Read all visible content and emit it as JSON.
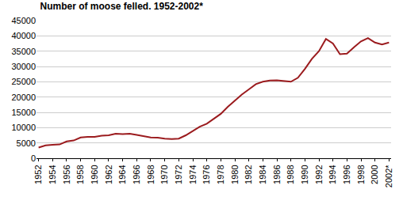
{
  "chart_data": {
    "type": "line",
    "title": "Number of moose felled. 1952-2002*",
    "categories": [
      "1952",
      null,
      "1954",
      null,
      "1956",
      null,
      "1958",
      null,
      "1960",
      null,
      "1962",
      null,
      "1964",
      null,
      "1966",
      null,
      "1968",
      null,
      "1970",
      null,
      "1972",
      null,
      "1974",
      null,
      "1976",
      null,
      "1978",
      null,
      "1980",
      null,
      "1982",
      null,
      "1984",
      null,
      "1986",
      null,
      "1988",
      null,
      "1990",
      null,
      "1992",
      null,
      "1994",
      null,
      "1996",
      null,
      "1998",
      null,
      "2000",
      null,
      "2002*"
    ],
    "values": [
      3500,
      4200,
      4400,
      4500,
      5500,
      5800,
      6800,
      7000,
      7000,
      7400,
      7500,
      8000,
      7900,
      8000,
      7600,
      7200,
      6800,
      6700,
      6400,
      6300,
      6400,
      7500,
      8800,
      10300,
      11300,
      12800,
      14500,
      16800,
      18800,
      20800,
      22500,
      24200,
      25000,
      25400,
      25500,
      25200,
      25000,
      26300,
      29200,
      32500,
      35000,
      39000,
      37500,
      34000,
      34200,
      36300,
      38200,
      39300,
      37800,
      37200,
      37800
    ],
    "color": "#9b1b1e",
    "ylim": [
      0,
      45000
    ],
    "yticks": [
      0,
      5000,
      10000,
      15000,
      20000,
      25000,
      30000,
      35000,
      40000,
      45000
    ],
    "grid": true
  }
}
